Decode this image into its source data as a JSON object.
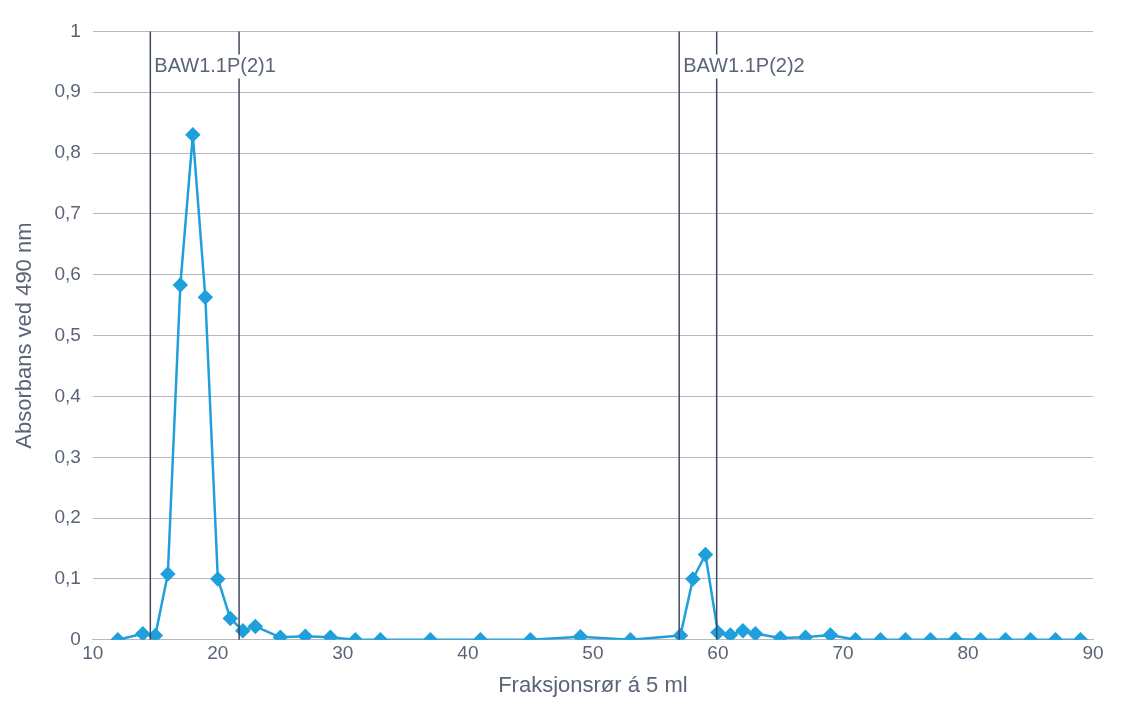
{
  "chart_data": {
    "type": "line",
    "xlabel": "Fraksjonsrør á 5 ml",
    "ylabel": "Absorbans ved 490 nm",
    "x": [
      12,
      14,
      15,
      16,
      17,
      18,
      19,
      20,
      21,
      22,
      23,
      25,
      27,
      29,
      31,
      33,
      37,
      41,
      45,
      49,
      53,
      57,
      58,
      59,
      60,
      61,
      62,
      63,
      65,
      67,
      69,
      71,
      73,
      75,
      77,
      79,
      81,
      83,
      85,
      87,
      89
    ],
    "series": [
      {
        "color": "#1fa0dc",
        "values": [
          0,
          0.01,
          0.007,
          0.108,
          0.583,
          0.83,
          0.563,
          0.1,
          0.035,
          0.015,
          0.022,
          0.004,
          0.006,
          0.004,
          0,
          0,
          0,
          0,
          0,
          0.005,
          0,
          0.007,
          0.1,
          0.14,
          0.012,
          0.008,
          0.015,
          0.01,
          0.003,
          0.004,
          0.008,
          0,
          0,
          0,
          0,
          0.001,
          0,
          0,
          0,
          0,
          0
        ]
      }
    ],
    "xlim": [
      10,
      90
    ],
    "xticks": [
      10,
      20,
      30,
      40,
      50,
      60,
      70,
      80,
      90
    ],
    "ylim": [
      0,
      1
    ],
    "yticks": [
      0,
      {
        "value": 0.1,
        "label": "0,1"
      },
      {
        "value": 0.2,
        "label": "0,2"
      },
      {
        "value": 0.3,
        "label": "0,3"
      },
      {
        "value": 0.4,
        "label": "0,4"
      },
      {
        "value": 0.5,
        "label": "0,5"
      },
      {
        "value": 0.6,
        "label": "0,6"
      },
      {
        "value": 0.7,
        "label": "0,7"
      },
      {
        "value": 0.8,
        "label": "0,8"
      },
      {
        "value": 0.9,
        "label": "0,9"
      },
      1
    ],
    "ref_lines": [
      {
        "axis": "x",
        "value": 14.6,
        "label": "BAW1.1P(2)1",
        "color": "#404a5a"
      },
      {
        "axis": "x",
        "value": 21.7,
        "label": null,
        "color": "#404a5a"
      },
      {
        "axis": "x",
        "value": 56.9,
        "label": "BAW1.1P(2)2",
        "color": "#404a5a"
      },
      {
        "axis": "x",
        "value": 59.9,
        "label": null,
        "color": "#404a5a"
      }
    ],
    "grid": "y",
    "legend": false,
    "marker": "diamond",
    "line_style": "solid"
  }
}
